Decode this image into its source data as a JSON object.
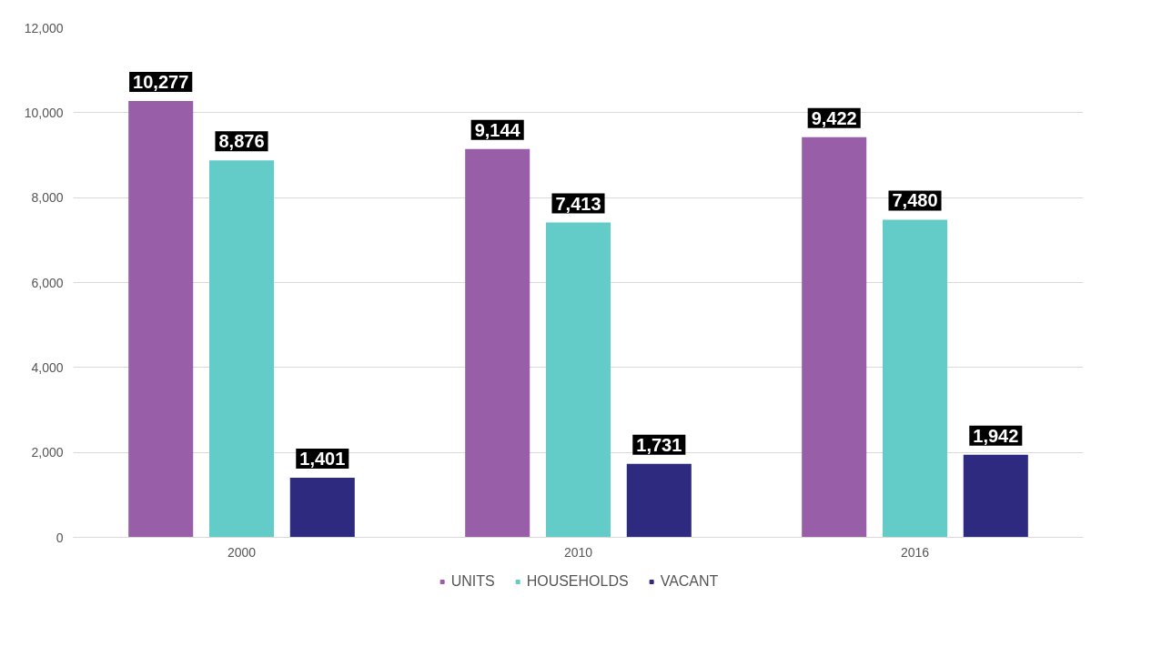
{
  "chart_data": {
    "type": "bar",
    "categories": [
      "2000",
      "2010",
      "2016"
    ],
    "series": [
      {
        "name": "UNITS",
        "color": "#995ea8",
        "values": [
          10277,
          9144,
          9422
        ],
        "value_labels": [
          "10,277",
          "9,144",
          "9,422"
        ]
      },
      {
        "name": "HOUSEHOLDS",
        "color": "#63cbc8",
        "values": [
          8876,
          7413,
          7480
        ],
        "value_labels": [
          "8,876",
          "7,413",
          "7,480"
        ]
      },
      {
        "name": "VACANT",
        "color": "#2e2a7f",
        "values": [
          1401,
          1731,
          1942
        ],
        "value_labels": [
          "1,401",
          "1,731",
          "1,942"
        ]
      }
    ],
    "ylim": [
      0,
      12000
    ],
    "yticks": [
      {
        "value": 0,
        "label": "0"
      },
      {
        "value": 2000,
        "label": "2,000"
      },
      {
        "value": 4000,
        "label": "4,000"
      },
      {
        "value": 6000,
        "label": "6,000"
      },
      {
        "value": 8000,
        "label": "8,000"
      },
      {
        "value": 10000,
        "label": "10,000"
      },
      {
        "value": 12000,
        "label": "12,000"
      }
    ],
    "grid": "y",
    "legend": "bottom"
  }
}
